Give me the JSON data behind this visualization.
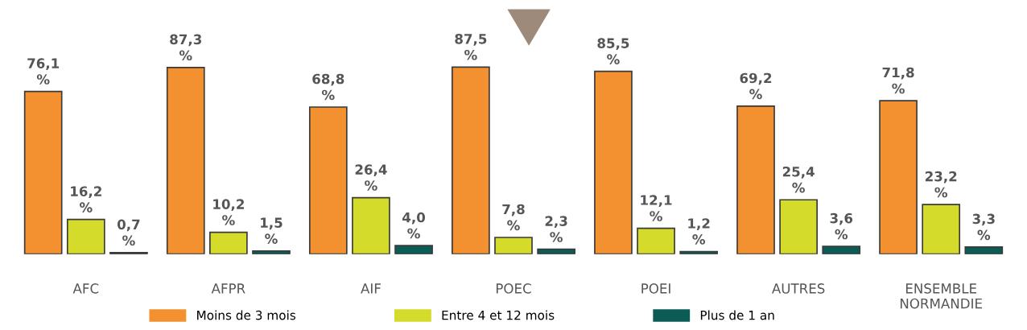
{
  "chart_data": {
    "type": "bar",
    "categories": [
      "AFC",
      "AFPR",
      "AIF",
      "POEC",
      "POEI",
      "AUTRES",
      "ENSEMBLE\nNORMANDIE"
    ],
    "series": [
      {
        "name": "Moins de 3 mois",
        "color": "#f39130",
        "values": [
          76.1,
          87.3,
          68.8,
          87.5,
          85.5,
          69.2,
          71.8
        ],
        "value_labels": [
          "76,1\n%",
          "87,3\n%",
          "68,8\n%",
          "87,5\n%",
          "85,5\n%",
          "69,2\n%",
          "71,8\n%"
        ]
      },
      {
        "name": "Entre 4 et 12 mois",
        "color": "#d4db2a",
        "values": [
          16.2,
          10.2,
          26.4,
          7.8,
          12.1,
          25.4,
          23.2
        ],
        "value_labels": [
          "16,2\n%",
          "10,2\n%",
          "26,4\n%",
          "7,8\n%",
          "12,1\n%",
          "25,4\n%",
          "23,2\n%"
        ]
      },
      {
        "name": "Plus de 1 an",
        "color": "#0b5c57",
        "values": [
          0.7,
          1.5,
          4.0,
          2.3,
          1.2,
          3.6,
          3.3
        ],
        "value_labels": [
          "0,7\n%",
          "1,5\n%",
          "4,0\n%",
          "2,3\n%",
          "1,2\n%",
          "3,6\n%",
          "3,3\n%"
        ]
      }
    ],
    "legend": "bottom",
    "grid": false
  }
}
